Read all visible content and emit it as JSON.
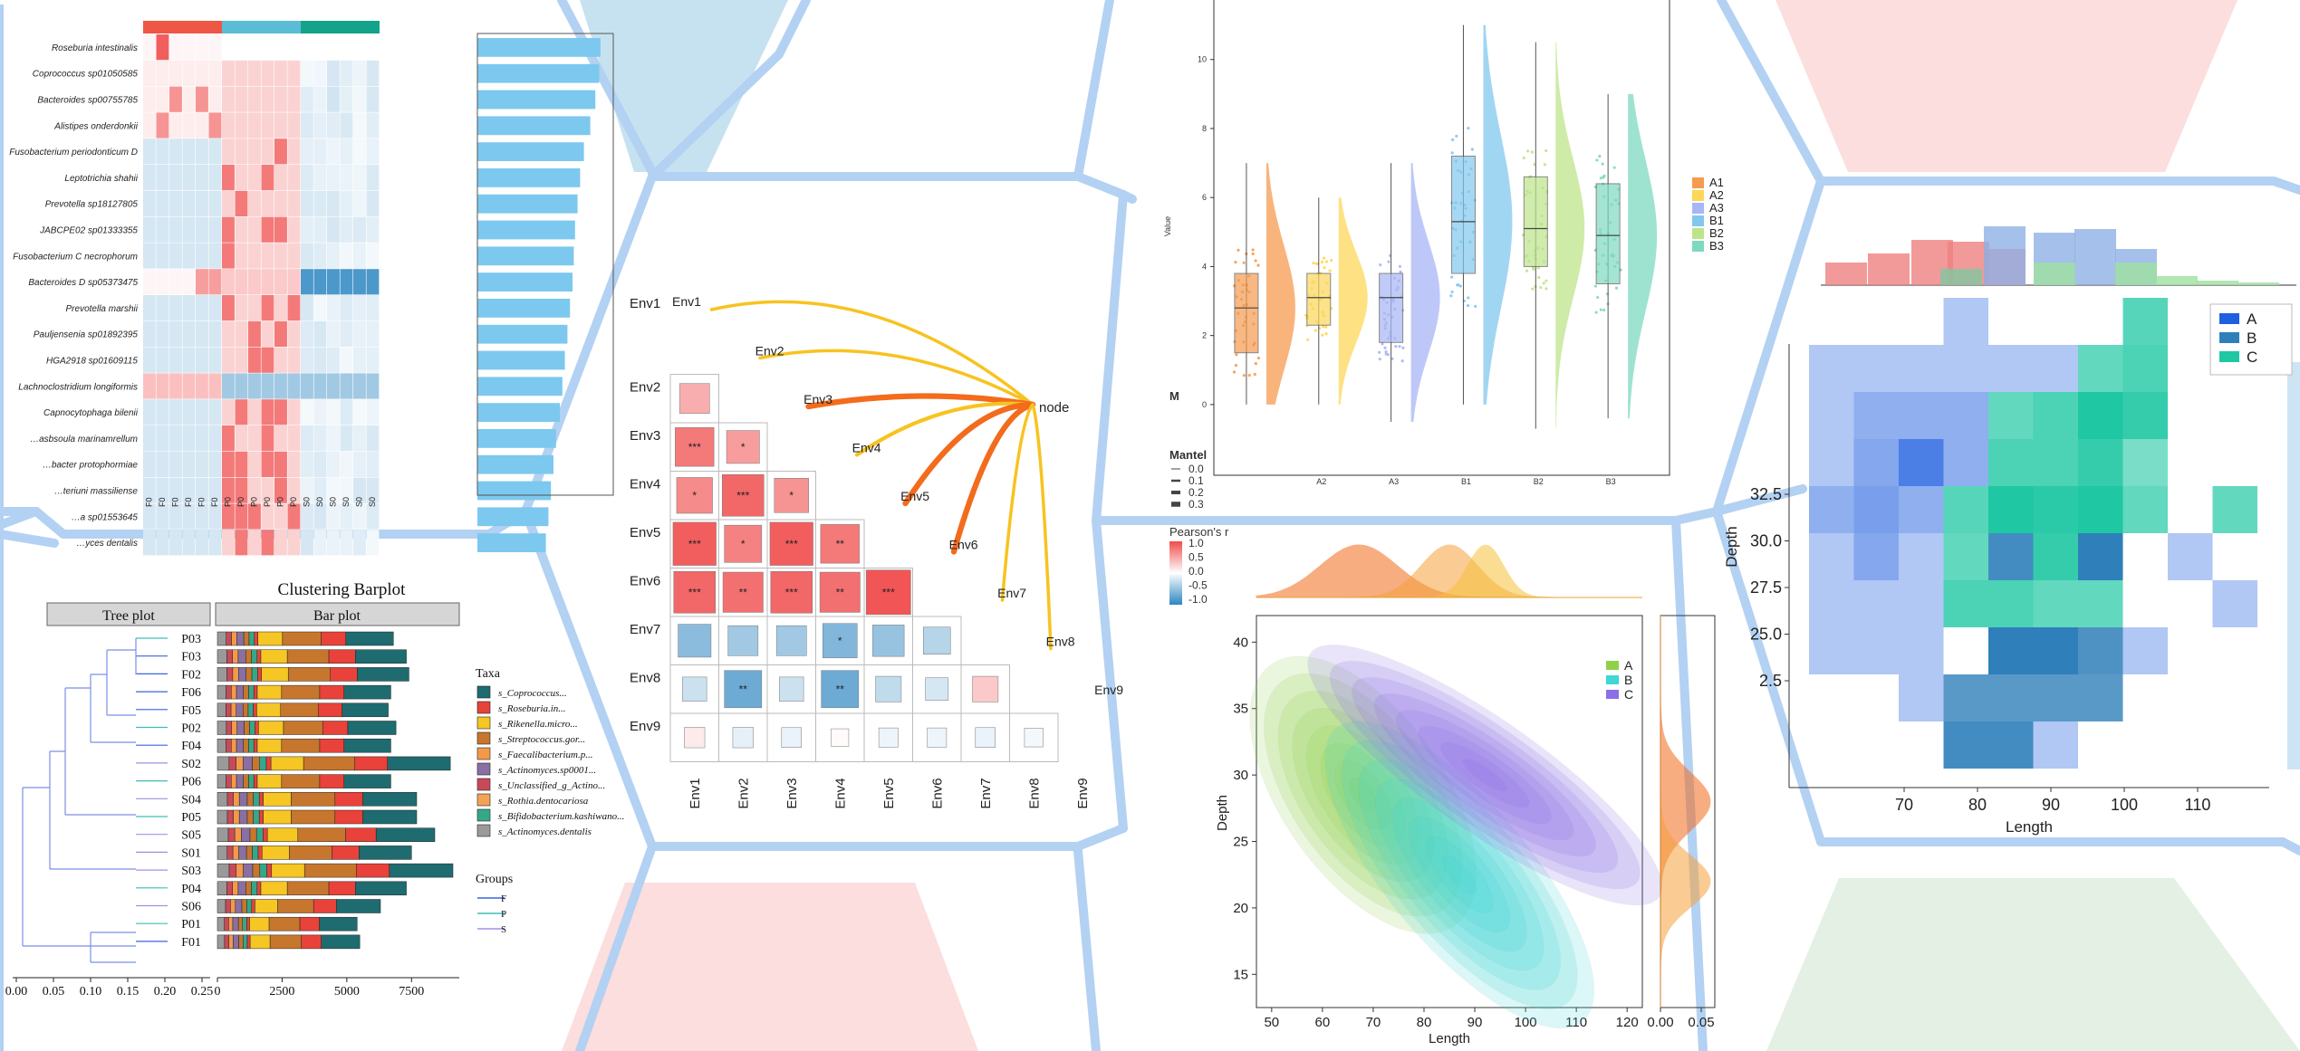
{
  "palette": {
    "frame": "#b3d1f2",
    "hex_blue": "#c6e2f0",
    "hex_pink": "#fbdedd",
    "hex_green": "#e3f0e3"
  },
  "chart_data": [
    {
      "id": "heatmap_bar",
      "type": "heatmap",
      "group_bar_colors": [
        "#ee5745",
        "#5bbcd6",
        "#13a38a"
      ],
      "row_labels": [
        "Roseburia intestinalis",
        "Coprococcus sp01050585",
        "Bacteroides sp00755785",
        "Alistipes onderdonkii",
        "Fusobacterium periodonticum D",
        "Leptotrichia shahii",
        "Prevotella sp18127805",
        "JABCPE02 sp01333355",
        "Fusobacterium C necrophorum",
        "Bacteroides D sp05373475",
        "Prevotella marshii",
        "Pauljensenia sp01892395",
        "HGA2918 sp01609115",
        "Lachnoclostridium longiformis",
        "Capnocytophaga bilenii",
        "…asbsoula marinamrellum",
        "…bacter protophormiae",
        "…teriuni massiliense",
        "…a sp01553645",
        "…yces dentalis"
      ],
      "column_labels": [
        "F0",
        "F0",
        "F0",
        "F0",
        "F0",
        "F0",
        "P0",
        "P0",
        "P0",
        "P0",
        "P0",
        "P0",
        "S0",
        "S0",
        "S0",
        "S0",
        "S0",
        "S0"
      ],
      "side_bar_values": [
        0.97,
        0.96,
        0.93,
        0.89,
        0.84,
        0.81,
        0.79,
        0.77,
        0.76,
        0.75,
        0.73,
        0.71,
        0.69,
        0.67,
        0.65,
        0.62,
        0.6,
        0.58,
        0.56,
        0.54
      ]
    },
    {
      "id": "clustering_barplot",
      "type": "bar",
      "title": "Clustering Barplot",
      "panel_titles": [
        "Tree plot",
        "Bar plot"
      ],
      "categories": [
        "P03",
        "F03",
        "F02",
        "F06",
        "F05",
        "P02",
        "F04",
        "S02",
        "P06",
        "S04",
        "P05",
        "S05",
        "S01",
        "S03",
        "P04",
        "S06",
        "P01",
        "F01"
      ],
      "totals": [
        6800,
        7300,
        7400,
        6700,
        6600,
        6900,
        6700,
        9000,
        6700,
        7700,
        7700,
        8400,
        7500,
        9100,
        7300,
        6300,
        5400,
        5500
      ],
      "tree_ticks": [
        "0.00",
        "0.05",
        "0.10",
        "0.15",
        "0.20",
        "0.25"
      ],
      "bar_ticks": [
        "0",
        "2500",
        "5000",
        "7500"
      ],
      "legend_title": "Taxa",
      "taxa": [
        {
          "name": "s_Coprococcus...",
          "color": "#1e6b70"
        },
        {
          "name": "s_Roseburia.in...",
          "color": "#e8423a"
        },
        {
          "name": "s_Rikenella.micro...",
          "color": "#f5c624"
        },
        {
          "name": "s_Streptococcus.gor...",
          "color": "#c7762d"
        },
        {
          "name": "s_Faecalibacterium.p...",
          "color": "#f29a4a"
        },
        {
          "name": "s_Actinomyces.sp0001...",
          "color": "#8a6fa2"
        },
        {
          "name": "s_Unclassified_g_Actino...",
          "color": "#c84a59"
        },
        {
          "name": "s_Rothia.dentocariosa",
          "color": "#f2a357"
        },
        {
          "name": "s_Bifidobacterium.kashiwano...",
          "color": "#36a88a"
        },
        {
          "name": "s_Actinomyces.dentalis",
          "color": "#9a9a9a"
        }
      ],
      "groups_title": "Groups",
      "groups": [
        {
          "name": "F",
          "color": "#3a63e0"
        },
        {
          "name": "P",
          "color": "#3ebdb5"
        },
        {
          "name": "S",
          "color": "#a58de6"
        }
      ]
    },
    {
      "id": "correlation_mantel",
      "type": "heatmap",
      "variables": [
        "Env1",
        "Env2",
        "Env3",
        "Env4",
        "Env5",
        "Env6",
        "Env7",
        "Env8",
        "Env9"
      ],
      "node_label": "node",
      "pearson_title": "Pearson's r",
      "pearson_ticks": [
        "1.0",
        "0.5",
        "0.0",
        "-0.5",
        "-1.0"
      ],
      "mantel_title": "Mantel",
      "mantel_ticks": [
        "0.0",
        "0.1",
        "0.2",
        "0.3"
      ],
      "cut_label": "M",
      "cells": [
        {
          "r": 1,
          "c": 0,
          "v": 0.45,
          "s": ""
        },
        {
          "r": 2,
          "c": 0,
          "v": 0.75,
          "s": "***"
        },
        {
          "r": 2,
          "c": 1,
          "v": 0.55,
          "s": "*"
        },
        {
          "r": 3,
          "c": 0,
          "v": 0.65,
          "s": "*"
        },
        {
          "r": 3,
          "c": 1,
          "v": 0.85,
          "s": "***"
        },
        {
          "r": 3,
          "c": 2,
          "v": 0.6,
          "s": "*"
        },
        {
          "r": 4,
          "c": 0,
          "v": 0.9,
          "s": "***"
        },
        {
          "r": 4,
          "c": 1,
          "v": 0.7,
          "s": "*"
        },
        {
          "r": 4,
          "c": 2,
          "v": 0.9,
          "s": "***"
        },
        {
          "r": 4,
          "c": 3,
          "v": 0.75,
          "s": "**"
        },
        {
          "r": 5,
          "c": 0,
          "v": 0.85,
          "s": "***"
        },
        {
          "r": 5,
          "c": 1,
          "v": 0.8,
          "s": "**"
        },
        {
          "r": 5,
          "c": 2,
          "v": 0.85,
          "s": "***"
        },
        {
          "r": 5,
          "c": 3,
          "v": 0.8,
          "s": "**"
        },
        {
          "r": 5,
          "c": 4,
          "v": 0.95,
          "s": "***"
        },
        {
          "r": 6,
          "c": 0,
          "v": -0.55,
          "s": ""
        },
        {
          "r": 6,
          "c": 1,
          "v": -0.45,
          "s": ""
        },
        {
          "r": 6,
          "c": 2,
          "v": -0.45,
          "s": ""
        },
        {
          "r": 6,
          "c": 3,
          "v": -0.6,
          "s": "*"
        },
        {
          "r": 6,
          "c": 4,
          "v": -0.5,
          "s": ""
        },
        {
          "r": 6,
          "c": 5,
          "v": -0.35,
          "s": ""
        },
        {
          "r": 7,
          "c": 0,
          "v": -0.25,
          "s": ""
        },
        {
          "r": 7,
          "c": 1,
          "v": -0.7,
          "s": "**"
        },
        {
          "r": 7,
          "c": 2,
          "v": -0.25,
          "s": ""
        },
        {
          "r": 7,
          "c": 3,
          "v": -0.7,
          "s": "**"
        },
        {
          "r": 7,
          "c": 4,
          "v": -0.3,
          "s": ""
        },
        {
          "r": 7,
          "c": 5,
          "v": -0.2,
          "s": ""
        },
        {
          "r": 7,
          "c": 6,
          "v": 0.3,
          "s": ""
        },
        {
          "r": 8,
          "c": 0,
          "v": 0.12,
          "s": ""
        },
        {
          "r": 8,
          "c": 1,
          "v": -0.12,
          "s": ""
        },
        {
          "r": 8,
          "c": 2,
          "v": -0.1,
          "s": ""
        },
        {
          "r": 8,
          "c": 3,
          "v": 0.02,
          "s": ""
        },
        {
          "r": 8,
          "c": 4,
          "v": -0.08,
          "s": ""
        },
        {
          "r": 8,
          "c": 5,
          "v": -0.08,
          "s": ""
        },
        {
          "r": 8,
          "c": 6,
          "v": -0.1,
          "s": ""
        },
        {
          "r": 8,
          "c": 7,
          "v": -0.06,
          "s": ""
        }
      ],
      "links": [
        {
          "to": 0,
          "strength": 0.25,
          "color": "#f7c31f"
        },
        {
          "to": 1,
          "strength": 0.25,
          "color": "#f7c31f"
        },
        {
          "to": 2,
          "strength": 0.45,
          "color": "#f36b1c"
        },
        {
          "to": 3,
          "strength": 0.3,
          "color": "#f7c31f"
        },
        {
          "to": 4,
          "strength": 0.45,
          "color": "#f36b1c"
        },
        {
          "to": 5,
          "strength": 0.45,
          "color": "#f36b1c"
        },
        {
          "to": 6,
          "strength": 0.25,
          "color": "#f7c31f"
        },
        {
          "to": 7,
          "strength": 0.25,
          "color": "#f7c31f"
        }
      ]
    },
    {
      "id": "raincloud",
      "type": "scatter",
      "ylabel": "Value",
      "categories": [
        "A1",
        "A2",
        "A3",
        "B1",
        "B2",
        "B3"
      ],
      "visible_tick_labels": [
        "",
        "A2",
        "A3",
        "B1",
        "B2",
        "B3"
      ],
      "colors": [
        "#f59b4f",
        "#fcd75a",
        "#a8b6f5",
        "#82c8ee",
        "#bde48a",
        "#7ed9c0"
      ],
      "yticks": [
        0,
        2,
        4,
        6,
        8,
        10
      ],
      "boxes": [
        {
          "min": 0,
          "q1": 1.5,
          "median": 2.8,
          "q3": 3.8,
          "max": 7
        },
        {
          "min": 0,
          "q1": 2.3,
          "median": 3.1,
          "q3": 3.8,
          "max": 6
        },
        {
          "min": -0.5,
          "q1": 1.8,
          "median": 3.1,
          "q3": 3.8,
          "max": 7
        },
        {
          "min": 0,
          "q1": 3.8,
          "median": 5.3,
          "q3": 7.2,
          "max": 11
        },
        {
          "min": -0.7,
          "q1": 4,
          "median": 5.1,
          "q3": 6.6,
          "max": 10.5
        },
        {
          "min": -0.4,
          "q1": 3.5,
          "median": 4.9,
          "q3": 6.4,
          "max": 9
        }
      ]
    },
    {
      "id": "kde2d",
      "type": "scatter",
      "xlabel": "Length",
      "ylabel": "Depth",
      "xticks": [
        50,
        60,
        70,
        80,
        90,
        100,
        110,
        120
      ],
      "yticks": [
        15,
        20,
        25,
        30,
        35,
        40
      ],
      "right_ticks": [
        "0.00",
        "0.05"
      ],
      "series": [
        {
          "name": "A",
          "color": "#8fd24a",
          "cx": 68,
          "cy": 28.5
        },
        {
          "name": "B",
          "color": "#3fd6d6",
          "cx": 87,
          "cy": 22.5
        },
        {
          "name": "C",
          "color": "#8b6ee8",
          "cx": 92,
          "cy": 30
        }
      ]
    },
    {
      "id": "hist2d",
      "type": "heatmap",
      "xlabel": "Length",
      "ylabel": "Depth",
      "xticks": [
        70,
        80,
        90,
        100,
        110
      ],
      "yticks": [
        "2.5",
        "25.0",
        "27.5",
        "30.0",
        "32.5"
      ],
      "series": [
        {
          "name": "A",
          "color": "#1f5fe0"
        },
        {
          "name": "B",
          "color": "#2f7fba"
        },
        {
          "name": "C",
          "color": "#1fc7a3"
        }
      ],
      "cells": [
        {
          "x": 7,
          "y": 9,
          "s": "C",
          "a": 0.75
        },
        {
          "x": 3,
          "y": 9,
          "s": "A",
          "a": 0.35
        },
        {
          "x": 0,
          "y": 8,
          "s": "A",
          "a": 0.35
        },
        {
          "x": 1,
          "y": 8,
          "s": "A",
          "a": 0.35
        },
        {
          "x": 2,
          "y": 8,
          "s": "A",
          "a": 0.35
        },
        {
          "x": 3,
          "y": 8,
          "s": "A",
          "a": 0.35
        },
        {
          "x": 4,
          "y": 8,
          "s": "A",
          "a": 0.35
        },
        {
          "x": 5,
          "y": 8,
          "s": "A",
          "a": 0.35
        },
        {
          "x": 6,
          "y": 8,
          "s": "C",
          "a": 0.7
        },
        {
          "x": 7,
          "y": 8,
          "s": "C",
          "a": 0.8
        },
        {
          "x": 0,
          "y": 7,
          "s": "A",
          "a": 0.35
        },
        {
          "x": 1,
          "y": 7,
          "s": "A",
          "a": 0.5
        },
        {
          "x": 2,
          "y": 7,
          "s": "A",
          "a": 0.5
        },
        {
          "x": 3,
          "y": 7,
          "s": "A",
          "a": 0.5
        },
        {
          "x": 4,
          "y": 7,
          "s": "C",
          "a": 0.7
        },
        {
          "x": 5,
          "y": 7,
          "s": "C",
          "a": 0.8
        },
        {
          "x": 6,
          "y": 7,
          "s": "C",
          "a": 1.0
        },
        {
          "x": 7,
          "y": 7,
          "s": "C",
          "a": 0.9
        },
        {
          "x": 0,
          "y": 6,
          "s": "A",
          "a": 0.35
        },
        {
          "x": 1,
          "y": 6,
          "s": "A",
          "a": 0.55
        },
        {
          "x": 2,
          "y": 6,
          "s": "A",
          "a": 0.8
        },
        {
          "x": 3,
          "y": 6,
          "s": "A",
          "a": 0.5
        },
        {
          "x": 4,
          "y": 6,
          "s": "C",
          "a": 0.8
        },
        {
          "x": 5,
          "y": 6,
          "s": "C",
          "a": 0.8
        },
        {
          "x": 6,
          "y": 6,
          "s": "C",
          "a": 0.9
        },
        {
          "x": 7,
          "y": 6,
          "s": "C",
          "a": 0.6
        },
        {
          "x": 0,
          "y": 5,
          "s": "A",
          "a": 0.5
        },
        {
          "x": 1,
          "y": 5,
          "s": "A",
          "a": 0.6
        },
        {
          "x": 2,
          "y": 5,
          "s": "A",
          "a": 0.5
        },
        {
          "x": 3,
          "y": 5,
          "s": "C",
          "a": 0.75
        },
        {
          "x": 4,
          "y": 5,
          "s": "C",
          "a": 1.0
        },
        {
          "x": 5,
          "y": 5,
          "s": "C",
          "a": 0.95
        },
        {
          "x": 6,
          "y": 5,
          "s": "C",
          "a": 1.0
        },
        {
          "x": 7,
          "y": 5,
          "s": "C",
          "a": 0.7
        },
        {
          "x": 9,
          "y": 5,
          "s": "C",
          "a": 0.7
        },
        {
          "x": 0,
          "y": 4,
          "s": "A",
          "a": 0.35
        },
        {
          "x": 1,
          "y": 4,
          "s": "A",
          "a": 0.55
        },
        {
          "x": 2,
          "y": 4,
          "s": "A",
          "a": 0.35
        },
        {
          "x": 3,
          "y": 4,
          "s": "C",
          "a": 0.7
        },
        {
          "x": 4,
          "y": 4,
          "s": "B",
          "a": 0.9
        },
        {
          "x": 5,
          "y": 4,
          "s": "C",
          "a": 0.9
        },
        {
          "x": 6,
          "y": 4,
          "s": "B",
          "a": 1.0
        },
        {
          "x": 8,
          "y": 4,
          "s": "A",
          "a": 0.35
        },
        {
          "x": 0,
          "y": 3,
          "s": "A",
          "a": 0.35
        },
        {
          "x": 1,
          "y": 3,
          "s": "A",
          "a": 0.35
        },
        {
          "x": 2,
          "y": 3,
          "s": "A",
          "a": 0.35
        },
        {
          "x": 3,
          "y": 3,
          "s": "C",
          "a": 0.8
        },
        {
          "x": 4,
          "y": 3,
          "s": "C",
          "a": 0.8
        },
        {
          "x": 5,
          "y": 3,
          "s": "C",
          "a": 0.7
        },
        {
          "x": 6,
          "y": 3,
          "s": "C",
          "a": 0.7
        },
        {
          "x": 9,
          "y": 3,
          "s": "A",
          "a": 0.35
        },
        {
          "x": 0,
          "y": 2,
          "s": "A",
          "a": 0.35
        },
        {
          "x": 1,
          "y": 2,
          "s": "A",
          "a": 0.35
        },
        {
          "x": 2,
          "y": 2,
          "s": "A",
          "a": 0.35
        },
        {
          "x": 4,
          "y": 2,
          "s": "B",
          "a": 1.0
        },
        {
          "x": 5,
          "y": 2,
          "s": "B",
          "a": 1.0
        },
        {
          "x": 6,
          "y": 2,
          "s": "B",
          "a": 0.85
        },
        {
          "x": 7,
          "y": 2,
          "s": "A",
          "a": 0.35
        },
        {
          "x": 2,
          "y": 1,
          "s": "A",
          "a": 0.35
        },
        {
          "x": 3,
          "y": 1,
          "s": "B",
          "a": 0.8
        },
        {
          "x": 4,
          "y": 1,
          "s": "B",
          "a": 0.8
        },
        {
          "x": 5,
          "y": 1,
          "s": "B",
          "a": 0.8
        },
        {
          "x": 6,
          "y": 1,
          "s": "B",
          "a": 0.8
        },
        {
          "x": 3,
          "y": 0,
          "s": "B",
          "a": 0.9
        },
        {
          "x": 4,
          "y": 0,
          "s": "B",
          "a": 0.9
        },
        {
          "x": 5,
          "y": 0,
          "s": "A",
          "a": 0.35
        }
      ]
    }
  ]
}
